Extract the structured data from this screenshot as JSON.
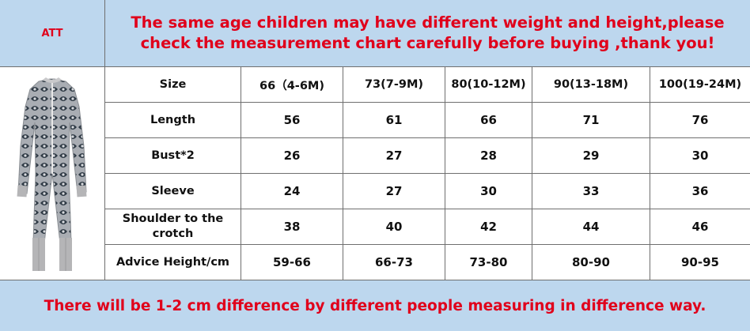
{
  "brand_cell": "ATT",
  "notice": "The same age children may have different weight and height,please check the measurement chart carefully before buying ,thank you!",
  "footer": "There will be 1-2 cm difference by different people measuring in difference way.",
  "product_image": {
    "icon": "patterned-romper-icon",
    "colors": {
      "body": "#a9adb3",
      "pattern": "#2f3a45",
      "cuff": "#b5b5b7"
    }
  },
  "table": {
    "header_label": "Size",
    "sizes": [
      "66（4-6M)",
      "73(7-9M)",
      "80(10-12M)",
      "90(13-18M)",
      "100(19-24M)"
    ],
    "rows": [
      {
        "label": "Length",
        "values": [
          "56",
          "61",
          "66",
          "71",
          "76"
        ]
      },
      {
        "label": "Bust*2",
        "values": [
          "26",
          "27",
          "28",
          "29",
          "30"
        ]
      },
      {
        "label": "Sleeve",
        "values": [
          "24",
          "27",
          "30",
          "33",
          "36"
        ]
      },
      {
        "label": "Shoulder to the crotch",
        "values": [
          "38",
          "40",
          "42",
          "44",
          "46"
        ]
      },
      {
        "label": "Advice Height/cm",
        "values": [
          "59-66",
          "66-73",
          "73-80",
          "80-90",
          "90-95"
        ]
      }
    ]
  },
  "colors": {
    "header_bg": "#bdd7ee",
    "accent_text": "#e0001b",
    "grid": "#6f6f6f"
  }
}
